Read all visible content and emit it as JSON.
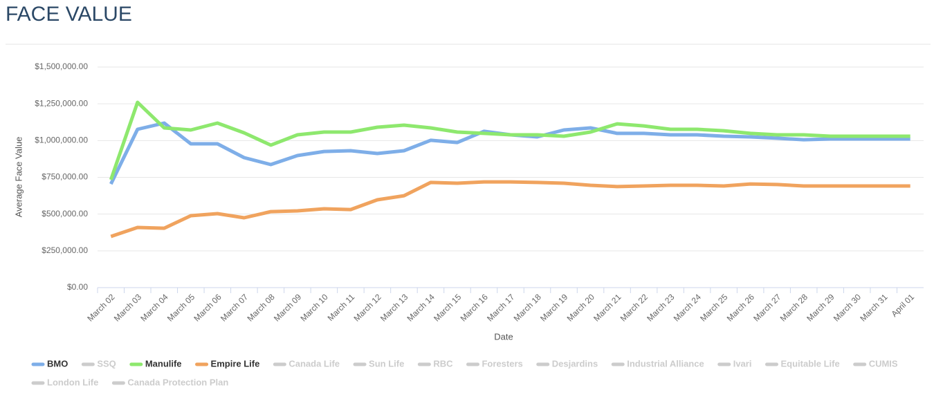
{
  "chart_data": {
    "type": "line",
    "title": "FACE VALUE",
    "x_label": "Date",
    "y_label": "Average Face Value",
    "categories": [
      "March 02",
      "March 03",
      "March 04",
      "March 05",
      "March 06",
      "March 07",
      "March 08",
      "March 09",
      "March 10",
      "March 11",
      "March 12",
      "March 13",
      "March 14",
      "March 15",
      "March 16",
      "March 17",
      "March 18",
      "March 19",
      "March 20",
      "March 21",
      "March 22",
      "March 23",
      "March 24",
      "March 25",
      "March 26",
      "March 27",
      "March 28",
      "March 29",
      "March 30",
      "March 31",
      "April 01"
    ],
    "ylim": [
      0,
      1500000
    ],
    "yticks": [
      {
        "value": 0,
        "label": "$0.00"
      },
      {
        "value": 250000,
        "label": "$250,000.00"
      },
      {
        "value": 500000,
        "label": "$500,000.00"
      },
      {
        "value": 750000,
        "label": "$750,000.00"
      },
      {
        "value": 1000000,
        "label": "$1,000,000.00"
      },
      {
        "value": 1250000,
        "label": "$1,250,000.00"
      },
      {
        "value": 1500000,
        "label": "$1,500,000.00"
      }
    ],
    "grid": true,
    "series": [
      {
        "name": "BMO",
        "color": "#7eaee8",
        "visible": true,
        "values": [
          705000,
          1077000,
          1119000,
          978000,
          978000,
          884000,
          837000,
          898000,
          926000,
          931000,
          912000,
          931000,
          1002000,
          987000,
          1063000,
          1039000,
          1025000,
          1072000,
          1086000,
          1049000,
          1049000,
          1039000,
          1039000,
          1030000,
          1025000,
          1016000,
          1006000,
          1011000,
          1011000,
          1011000,
          1011000
        ]
      },
      {
        "name": "SSQ",
        "color": "#cccccc",
        "visible": false,
        "values": [
          null,
          null,
          null,
          null,
          null,
          null,
          null,
          null,
          null,
          null,
          null,
          null,
          null,
          null,
          null,
          null,
          null,
          null,
          null,
          null,
          null,
          null,
          null,
          null,
          null,
          null,
          null,
          null,
          null,
          null,
          null
        ]
      },
      {
        "name": "Manulife",
        "color": "#8ee86e",
        "visible": true,
        "values": [
          734000,
          1260000,
          1086000,
          1072000,
          1119000,
          1053000,
          969000,
          1039000,
          1058000,
          1058000,
          1091000,
          1105000,
          1086000,
          1058000,
          1049000,
          1039000,
          1039000,
          1030000,
          1058000,
          1114000,
          1100000,
          1077000,
          1077000,
          1067000,
          1049000,
          1039000,
          1039000,
          1030000,
          1030000,
          1030000,
          1030000
        ]
      },
      {
        "name": "Empire Life",
        "color": "#f0a35e",
        "visible": true,
        "values": [
          348000,
          409000,
          404000,
          489000,
          503000,
          475000,
          517000,
          522000,
          536000,
          531000,
          597000,
          625000,
          715000,
          710000,
          719000,
          719000,
          715000,
          710000,
          696000,
          687000,
          691000,
          696000,
          696000,
          691000,
          705000,
          701000,
          691000,
          691000,
          691000,
          691000,
          691000
        ]
      },
      {
        "name": "Canada Life",
        "color": "#cccccc",
        "visible": false,
        "values": [
          null,
          null,
          null,
          null,
          null,
          null,
          null,
          null,
          null,
          null,
          null,
          null,
          null,
          null,
          null,
          null,
          null,
          null,
          null,
          null,
          null,
          null,
          null,
          null,
          null,
          null,
          null,
          null,
          null,
          null,
          null
        ]
      },
      {
        "name": "Sun Life",
        "color": "#cccccc",
        "visible": false,
        "values": [
          null,
          null,
          null,
          null,
          null,
          null,
          null,
          null,
          null,
          null,
          null,
          null,
          null,
          null,
          null,
          null,
          null,
          null,
          null,
          null,
          null,
          null,
          null,
          null,
          null,
          null,
          null,
          null,
          null,
          null,
          null
        ]
      },
      {
        "name": "RBC",
        "color": "#cccccc",
        "visible": false,
        "values": [
          null,
          null,
          null,
          null,
          null,
          null,
          null,
          null,
          null,
          null,
          null,
          null,
          null,
          null,
          null,
          null,
          null,
          null,
          null,
          null,
          null,
          null,
          null,
          null,
          null,
          null,
          null,
          null,
          null,
          null,
          null
        ]
      },
      {
        "name": "Foresters",
        "color": "#cccccc",
        "visible": false,
        "values": [
          null,
          null,
          null,
          null,
          null,
          null,
          null,
          null,
          null,
          null,
          null,
          null,
          null,
          null,
          null,
          null,
          null,
          null,
          null,
          null,
          null,
          null,
          null,
          null,
          null,
          null,
          null,
          null,
          null,
          null,
          null
        ]
      },
      {
        "name": "Desjardins",
        "color": "#cccccc",
        "visible": false,
        "values": [
          null,
          null,
          null,
          null,
          null,
          null,
          null,
          null,
          null,
          null,
          null,
          null,
          null,
          null,
          null,
          null,
          null,
          null,
          null,
          null,
          null,
          null,
          null,
          null,
          null,
          null,
          null,
          null,
          null,
          null,
          null
        ]
      },
      {
        "name": "Industrial Alliance",
        "color": "#cccccc",
        "visible": false,
        "values": [
          null,
          null,
          null,
          null,
          null,
          null,
          null,
          null,
          null,
          null,
          null,
          null,
          null,
          null,
          null,
          null,
          null,
          null,
          null,
          null,
          null,
          null,
          null,
          null,
          null,
          null,
          null,
          null,
          null,
          null,
          null
        ]
      },
      {
        "name": "Ivari",
        "color": "#cccccc",
        "visible": false,
        "values": [
          null,
          null,
          null,
          null,
          null,
          null,
          null,
          null,
          null,
          null,
          null,
          null,
          null,
          null,
          null,
          null,
          null,
          null,
          null,
          null,
          null,
          null,
          null,
          null,
          null,
          null,
          null,
          null,
          null,
          null,
          null
        ]
      },
      {
        "name": "Equitable Life",
        "color": "#cccccc",
        "visible": false,
        "values": [
          null,
          null,
          null,
          null,
          null,
          null,
          null,
          null,
          null,
          null,
          null,
          null,
          null,
          null,
          null,
          null,
          null,
          null,
          null,
          null,
          null,
          null,
          null,
          null,
          null,
          null,
          null,
          null,
          null,
          null,
          null
        ]
      },
      {
        "name": "CUMIS",
        "color": "#cccccc",
        "visible": false,
        "values": [
          null,
          null,
          null,
          null,
          null,
          null,
          null,
          null,
          null,
          null,
          null,
          null,
          null,
          null,
          null,
          null,
          null,
          null,
          null,
          null,
          null,
          null,
          null,
          null,
          null,
          null,
          null,
          null,
          null,
          null,
          null
        ]
      },
      {
        "name": "London Life",
        "color": "#cccccc",
        "visible": false,
        "values": [
          null,
          null,
          null,
          null,
          null,
          null,
          null,
          null,
          null,
          null,
          null,
          null,
          null,
          null,
          null,
          null,
          null,
          null,
          null,
          null,
          null,
          null,
          null,
          null,
          null,
          null,
          null,
          null,
          null,
          null,
          null
        ]
      },
      {
        "name": "Canada Protection Plan",
        "color": "#cccccc",
        "visible": false,
        "values": [
          null,
          null,
          null,
          null,
          null,
          null,
          null,
          null,
          null,
          null,
          null,
          null,
          null,
          null,
          null,
          null,
          null,
          null,
          null,
          null,
          null,
          null,
          null,
          null,
          null,
          null,
          null,
          null,
          null,
          null,
          null
        ]
      }
    ]
  }
}
